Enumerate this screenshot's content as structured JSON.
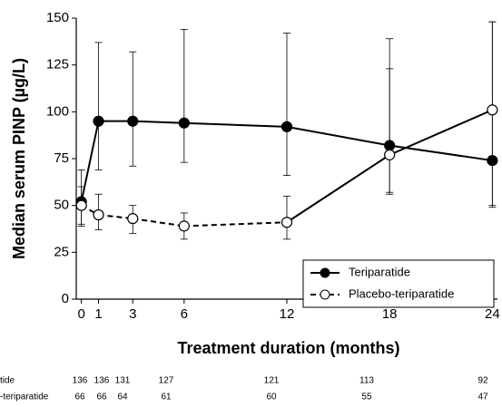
{
  "chart_data": {
    "type": "line",
    "y_label": "Median serum PINP (µg/L)",
    "x_label": "Treatment duration (months)",
    "x": [
      0,
      1,
      3,
      6,
      12,
      18,
      24
    ],
    "series": [
      {
        "name": "Teriparatide",
        "color": "#000000",
        "marker": "filled",
        "values": [
          52,
          95,
          95,
          94,
          92,
          82,
          74
        ],
        "lower": [
          39,
          69,
          71,
          73,
          66,
          56,
          49
        ],
        "upper": [
          69,
          137,
          132,
          144,
          142,
          139,
          148
        ],
        "linestyle_segments": [
          "solid",
          "solid",
          "solid",
          "solid",
          "solid",
          "solid"
        ]
      },
      {
        "name": "Placebo-teriparatide",
        "color": "#000000",
        "marker": "open",
        "values": [
          50,
          45,
          43,
          39,
          41,
          77,
          101
        ],
        "lower": [
          40,
          37,
          35,
          32,
          32,
          57,
          50
        ],
        "upper": [
          60,
          56,
          50,
          46,
          55,
          123,
          148
        ],
        "linestyle_segments": [
          "dashed",
          "dashed",
          "dashed",
          "dashed",
          "solid",
          "solid"
        ]
      }
    ],
    "xlim": [
      -0.3,
      24.3
    ],
    "xticks": [
      0,
      1,
      3,
      6,
      12,
      18,
      24
    ],
    "ylim": [
      0,
      150
    ],
    "yticks": [
      0,
      25,
      50,
      75,
      100,
      125,
      150
    ],
    "legend": "lower right"
  },
  "table": {
    "rows": [
      {
        "label": "tide",
        "values": [
          136,
          136,
          131,
          127,
          121,
          113,
          92
        ]
      },
      {
        "label": "-teriparatide",
        "values": [
          66,
          66,
          64,
          61,
          60,
          55,
          47
        ]
      }
    ]
  }
}
